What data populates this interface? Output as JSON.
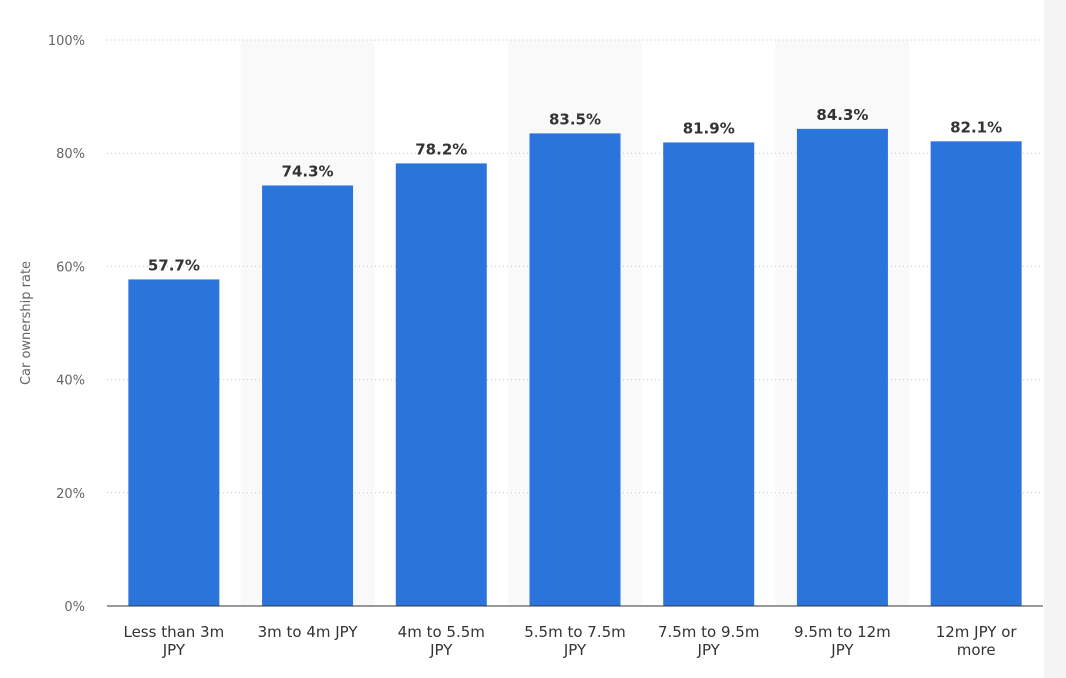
{
  "chart_data": {
    "type": "bar",
    "categories": [
      [
        "Less than 3m",
        "JPY"
      ],
      [
        "3m to 4m JPY"
      ],
      [
        "4m to 5.5m",
        "JPY"
      ],
      [
        "5.5m to 7.5m",
        "JPY"
      ],
      [
        "7.5m to 9.5m",
        "JPY"
      ],
      [
        "9.5m to 12m",
        "JPY"
      ],
      [
        "12m JPY or",
        "more"
      ]
    ],
    "values": [
      57.7,
      74.3,
      78.2,
      83.5,
      81.9,
      84.3,
      82.1
    ],
    "data_labels": [
      "57.7%",
      "74.3%",
      "78.2%",
      "83.5%",
      "81.9%",
      "84.3%",
      "82.1%"
    ],
    "ylabel": "Car ownership rate",
    "xlabel": "",
    "ylim": [
      0,
      100
    ],
    "yticks": [
      0,
      20,
      40,
      60,
      80,
      100
    ],
    "ytick_labels": [
      "0%",
      "20%",
      "40%",
      "60%",
      "80%",
      "100%"
    ],
    "grid": true,
    "bar_color": "#2a74dc"
  }
}
